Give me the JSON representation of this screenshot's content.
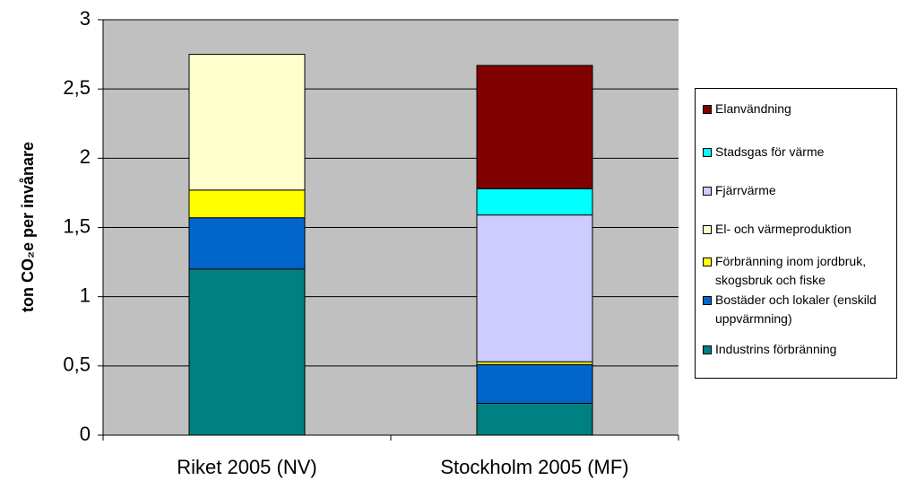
{
  "chart_data": {
    "type": "stacked_bar",
    "y_label": "ton CO₂e per invånare",
    "categories": [
      "Riket 2005 (NV)",
      "Stockholm 2005 (MF)"
    ],
    "series": [
      {
        "name": "Industrins förbränning",
        "color": "#008080",
        "values": [
          1.2,
          0.23
        ]
      },
      {
        "name": "Bostäder och lokaler (enskild uppvärmning)",
        "color": "#0066CC",
        "values": [
          0.37,
          0.28
        ]
      },
      {
        "name": "Förbränning inom jordbruk, skogsbruk och fiske",
        "color": "#FFFF00",
        "values": [
          0.2,
          0.02
        ]
      },
      {
        "name": "El- och värmeproduktion",
        "color": "#FFFFCC",
        "values": [
          0.98,
          0
        ]
      },
      {
        "name": "Fjärrvärme",
        "color": "#CCCCFF",
        "values": [
          0,
          1.06
        ]
      },
      {
        "name": "Stadsgas för värme",
        "color": "#00FFFF",
        "values": [
          0,
          0.19
        ]
      },
      {
        "name": "Elanvändning",
        "color": "#800000",
        "values": [
          0,
          0.89
        ]
      }
    ],
    "ylim": [
      0,
      3
    ],
    "yticks": [
      0,
      {
        "value": 0.5,
        "label": "0,5"
      },
      1,
      {
        "value": 1.5,
        "label": "1,5"
      },
      2,
      {
        "value": 2.5,
        "label": "2,5"
      },
      3
    ],
    "grid": true
  }
}
